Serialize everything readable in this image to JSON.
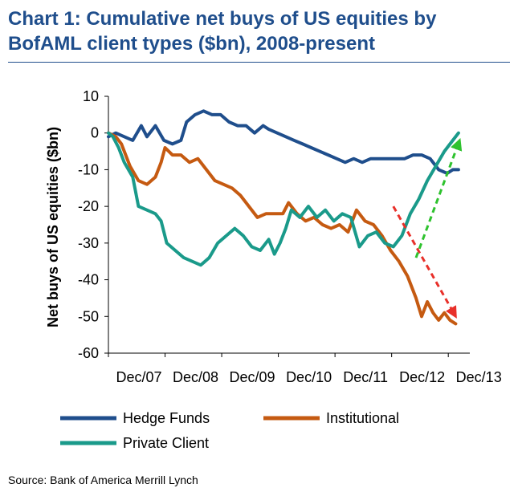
{
  "chart_data": {
    "type": "line",
    "title": "Chart 1: Cumulative net buys of US equities by BofAML client types ($bn), 2008-present",
    "xlabel": "",
    "ylabel": "Net buys of US equities ($bn)",
    "ylim": [
      -60,
      10
    ],
    "yticks": [
      "10",
      "0",
      "-10",
      "-20",
      "-30",
      "-40",
      "-50",
      "-60"
    ],
    "xlim": [
      2007.92,
      2014.3
    ],
    "xticks": [
      {
        "label": "Dec/07",
        "x": 2007.92
      },
      {
        "label": "Dec/08",
        "x": 2008.92
      },
      {
        "label": "Dec/09",
        "x": 2009.92
      },
      {
        "label": "Dec/10",
        "x": 2010.92
      },
      {
        "label": "Dec/11",
        "x": 2011.92
      },
      {
        "label": "Dec/12",
        "x": 2012.92
      },
      {
        "label": "Dec/13",
        "x": 2013.92
      }
    ],
    "grid": false,
    "legend_position": "bottom",
    "series": [
      {
        "name": "Hedge Funds",
        "color": "#1f4e8c",
        "points": [
          [
            2007.92,
            -1
          ],
          [
            2008.05,
            0
          ],
          [
            2008.2,
            -1
          ],
          [
            2008.35,
            -2
          ],
          [
            2008.5,
            2
          ],
          [
            2008.6,
            -1
          ],
          [
            2008.75,
            2
          ],
          [
            2008.9,
            -2
          ],
          [
            2009.05,
            -3
          ],
          [
            2009.2,
            -2
          ],
          [
            2009.3,
            3
          ],
          [
            2009.45,
            5
          ],
          [
            2009.6,
            6
          ],
          [
            2009.75,
            5
          ],
          [
            2009.9,
            5
          ],
          [
            2010.05,
            3
          ],
          [
            2010.2,
            2
          ],
          [
            2010.35,
            2
          ],
          [
            2010.5,
            0
          ],
          [
            2010.65,
            2
          ],
          [
            2010.75,
            1
          ],
          [
            2010.9,
            0
          ],
          [
            2011.05,
            -1
          ],
          [
            2011.2,
            -2
          ],
          [
            2011.35,
            -3
          ],
          [
            2011.5,
            -4
          ],
          [
            2011.65,
            -5
          ],
          [
            2011.8,
            -6
          ],
          [
            2011.95,
            -7
          ],
          [
            2012.1,
            -8
          ],
          [
            2012.25,
            -7
          ],
          [
            2012.4,
            -8
          ],
          [
            2012.55,
            -7
          ],
          [
            2012.7,
            -7
          ],
          [
            2012.85,
            -7
          ],
          [
            2013.0,
            -7
          ],
          [
            2013.15,
            -7
          ],
          [
            2013.3,
            -6
          ],
          [
            2013.45,
            -6
          ],
          [
            2013.6,
            -7
          ],
          [
            2013.75,
            -10
          ],
          [
            2013.9,
            -11
          ],
          [
            2014.0,
            -10
          ],
          [
            2014.1,
            -10
          ]
        ]
      },
      {
        "name": "Institutional",
        "color": "#c55a11",
        "points": [
          [
            2007.92,
            0
          ],
          [
            2008.05,
            -1
          ],
          [
            2008.15,
            -3
          ],
          [
            2008.3,
            -9
          ],
          [
            2008.45,
            -13
          ],
          [
            2008.6,
            -14
          ],
          [
            2008.75,
            -12
          ],
          [
            2008.85,
            -8
          ],
          [
            2008.92,
            -4
          ],
          [
            2009.05,
            -6
          ],
          [
            2009.2,
            -6
          ],
          [
            2009.35,
            -8
          ],
          [
            2009.5,
            -7
          ],
          [
            2009.65,
            -10
          ],
          [
            2009.8,
            -13
          ],
          [
            2009.95,
            -14
          ],
          [
            2010.1,
            -15
          ],
          [
            2010.25,
            -17
          ],
          [
            2010.4,
            -20
          ],
          [
            2010.55,
            -23
          ],
          [
            2010.7,
            -22
          ],
          [
            2010.85,
            -22
          ],
          [
            2011.0,
            -22
          ],
          [
            2011.1,
            -19
          ],
          [
            2011.25,
            -22
          ],
          [
            2011.4,
            -24
          ],
          [
            2011.55,
            -23
          ],
          [
            2011.7,
            -25
          ],
          [
            2011.85,
            -26
          ],
          [
            2012.0,
            -25
          ],
          [
            2012.15,
            -27
          ],
          [
            2012.3,
            -21
          ],
          [
            2012.45,
            -24
          ],
          [
            2012.6,
            -25
          ],
          [
            2012.75,
            -28
          ],
          [
            2012.9,
            -32
          ],
          [
            2013.05,
            -35
          ],
          [
            2013.2,
            -39
          ],
          [
            2013.35,
            -45
          ],
          [
            2013.45,
            -50
          ],
          [
            2013.55,
            -46
          ],
          [
            2013.65,
            -49
          ],
          [
            2013.75,
            -51
          ],
          [
            2013.85,
            -49
          ],
          [
            2013.95,
            -51
          ],
          [
            2014.05,
            -52
          ]
        ]
      },
      {
        "name": "Private Client",
        "color": "#1a9a8a",
        "points": [
          [
            2007.92,
            0
          ],
          [
            2008.0,
            -1
          ],
          [
            2008.1,
            -4
          ],
          [
            2008.2,
            -8
          ],
          [
            2008.35,
            -12
          ],
          [
            2008.45,
            -20
          ],
          [
            2008.6,
            -21
          ],
          [
            2008.75,
            -22
          ],
          [
            2008.85,
            -24
          ],
          [
            2008.95,
            -30
          ],
          [
            2009.1,
            -32
          ],
          [
            2009.25,
            -34
          ],
          [
            2009.4,
            -35
          ],
          [
            2009.55,
            -36
          ],
          [
            2009.7,
            -34
          ],
          [
            2009.85,
            -30
          ],
          [
            2010.0,
            -28
          ],
          [
            2010.15,
            -26
          ],
          [
            2010.3,
            -28
          ],
          [
            2010.45,
            -31
          ],
          [
            2010.6,
            -32
          ],
          [
            2010.75,
            -29
          ],
          [
            2010.85,
            -33
          ],
          [
            2010.95,
            -30
          ],
          [
            2011.05,
            -26
          ],
          [
            2011.15,
            -21
          ],
          [
            2011.3,
            -23
          ],
          [
            2011.45,
            -20
          ],
          [
            2011.6,
            -23
          ],
          [
            2011.75,
            -21
          ],
          [
            2011.9,
            -24
          ],
          [
            2012.05,
            -22
          ],
          [
            2012.2,
            -23
          ],
          [
            2012.35,
            -31
          ],
          [
            2012.5,
            -28
          ],
          [
            2012.65,
            -27
          ],
          [
            2012.8,
            -30
          ],
          [
            2012.95,
            -31
          ],
          [
            2013.1,
            -28
          ],
          [
            2013.25,
            -22
          ],
          [
            2013.4,
            -18
          ],
          [
            2013.55,
            -13
          ],
          [
            2013.7,
            -9
          ],
          [
            2013.85,
            -5
          ],
          [
            2014.0,
            -2
          ],
          [
            2014.1,
            0
          ]
        ]
      }
    ],
    "annotations": [
      {
        "kind": "dashed-arrow",
        "color": "#e8302a",
        "from": [
          2012.95,
          -20
        ],
        "to": [
          2014.05,
          -50
        ]
      },
      {
        "kind": "dashed-arrow",
        "color": "#2ec22e",
        "from": [
          2013.35,
          -34
        ],
        "to": [
          2014.12,
          -2
        ]
      }
    ]
  },
  "source": "Source: Bank of America Merrill Lynch"
}
